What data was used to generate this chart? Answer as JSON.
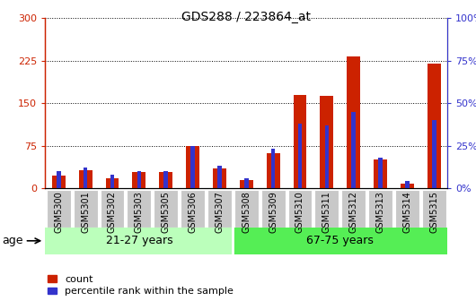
{
  "title": "GDS288 / 223864_at",
  "samples": [
    "GSM5300",
    "GSM5301",
    "GSM5302",
    "GSM5303",
    "GSM5305",
    "GSM5306",
    "GSM5307",
    "GSM5308",
    "GSM5309",
    "GSM5310",
    "GSM5311",
    "GSM5312",
    "GSM5313",
    "GSM5314",
    "GSM5315"
  ],
  "count_values": [
    22,
    32,
    18,
    28,
    28,
    75,
    35,
    15,
    62,
    165,
    163,
    232,
    50,
    8,
    220
  ],
  "percentile_values": [
    10,
    12,
    8,
    10,
    10,
    25,
    13,
    6,
    23,
    38,
    37,
    45,
    18,
    4,
    40
  ],
  "groups": [
    {
      "label": "21-27 years",
      "start": 0,
      "end": 7
    },
    {
      "label": "67-75 years",
      "start": 7,
      "end": 15
    }
  ],
  "age_label": "age",
  "ylim_left": [
    0,
    300
  ],
  "ylim_right": [
    0,
    100
  ],
  "yticks_left": [
    0,
    75,
    150,
    225,
    300
  ],
  "yticks_right": [
    0,
    25,
    50,
    75,
    100
  ],
  "ytick_labels_left": [
    "0",
    "75",
    "150",
    "225",
    "300"
  ],
  "ytick_labels_right": [
    "0%",
    "25%",
    "50%",
    "75%",
    "100%"
  ],
  "bar_color_count": "#CC2200",
  "bar_color_pct": "#3333CC",
  "legend_count": "count",
  "legend_pct": "percentile rank within the sample",
  "bg_group_light": "#BBFFBB",
  "bg_group_dark": "#55EE55",
  "bar_width": 0.5,
  "pct_bar_width": 0.15
}
